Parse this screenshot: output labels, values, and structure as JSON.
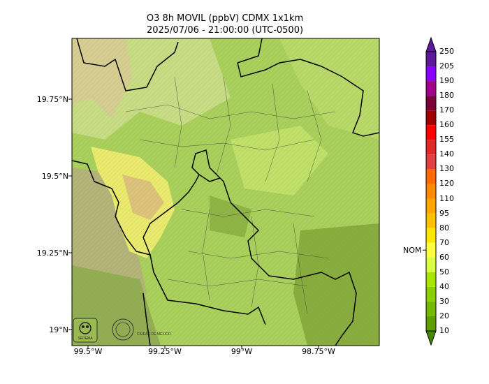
{
  "title": "O3 8h MOVIL (ppbV) CDMX 1x1km",
  "subtitle": "2025/07/06 - 21:00:00 (UTC-0500)",
  "latitude_labels": [
    "19.75°N",
    "19.5°N",
    "19.25°N",
    "19°N"
  ],
  "longitude_labels": [
    "99.5°W",
    "99.25°W",
    "99°W",
    "98.75°W"
  ],
  "colorbar": {
    "ticks": [
      "250",
      "205",
      "190",
      "180",
      "170",
      "160",
      "155",
      "140",
      "130",
      "120",
      "110",
      "95",
      "80",
      "70",
      "60",
      "50",
      "40",
      "30",
      "20",
      "10"
    ],
    "colors": [
      "#5c1a9b",
      "#8a00ff",
      "#a0008a",
      "#7a0038",
      "#a00000",
      "#ff0000",
      "#e02828",
      "#e04040",
      "#ff6a00",
      "#ff8c00",
      "#ffa500",
      "#ffc000",
      "#ffe600",
      "#ffff40",
      "#d8ff40",
      "#a8e600",
      "#8ccf00",
      "#74b800",
      "#5e9e00",
      "#4a8500"
    ],
    "marker_label": "NOM",
    "marker_value": 65
  },
  "logos": {
    "left_text": "SEDEMA",
    "right_text": "CIUDAD DE MÉXICO"
  },
  "colors": {
    "base_green": "#a9cf5c",
    "light_green": "#c6e07a",
    "yellow": "#eef07a",
    "tan": "#d9c98a",
    "dark_green": "#7fa63a",
    "border": "#000000"
  }
}
